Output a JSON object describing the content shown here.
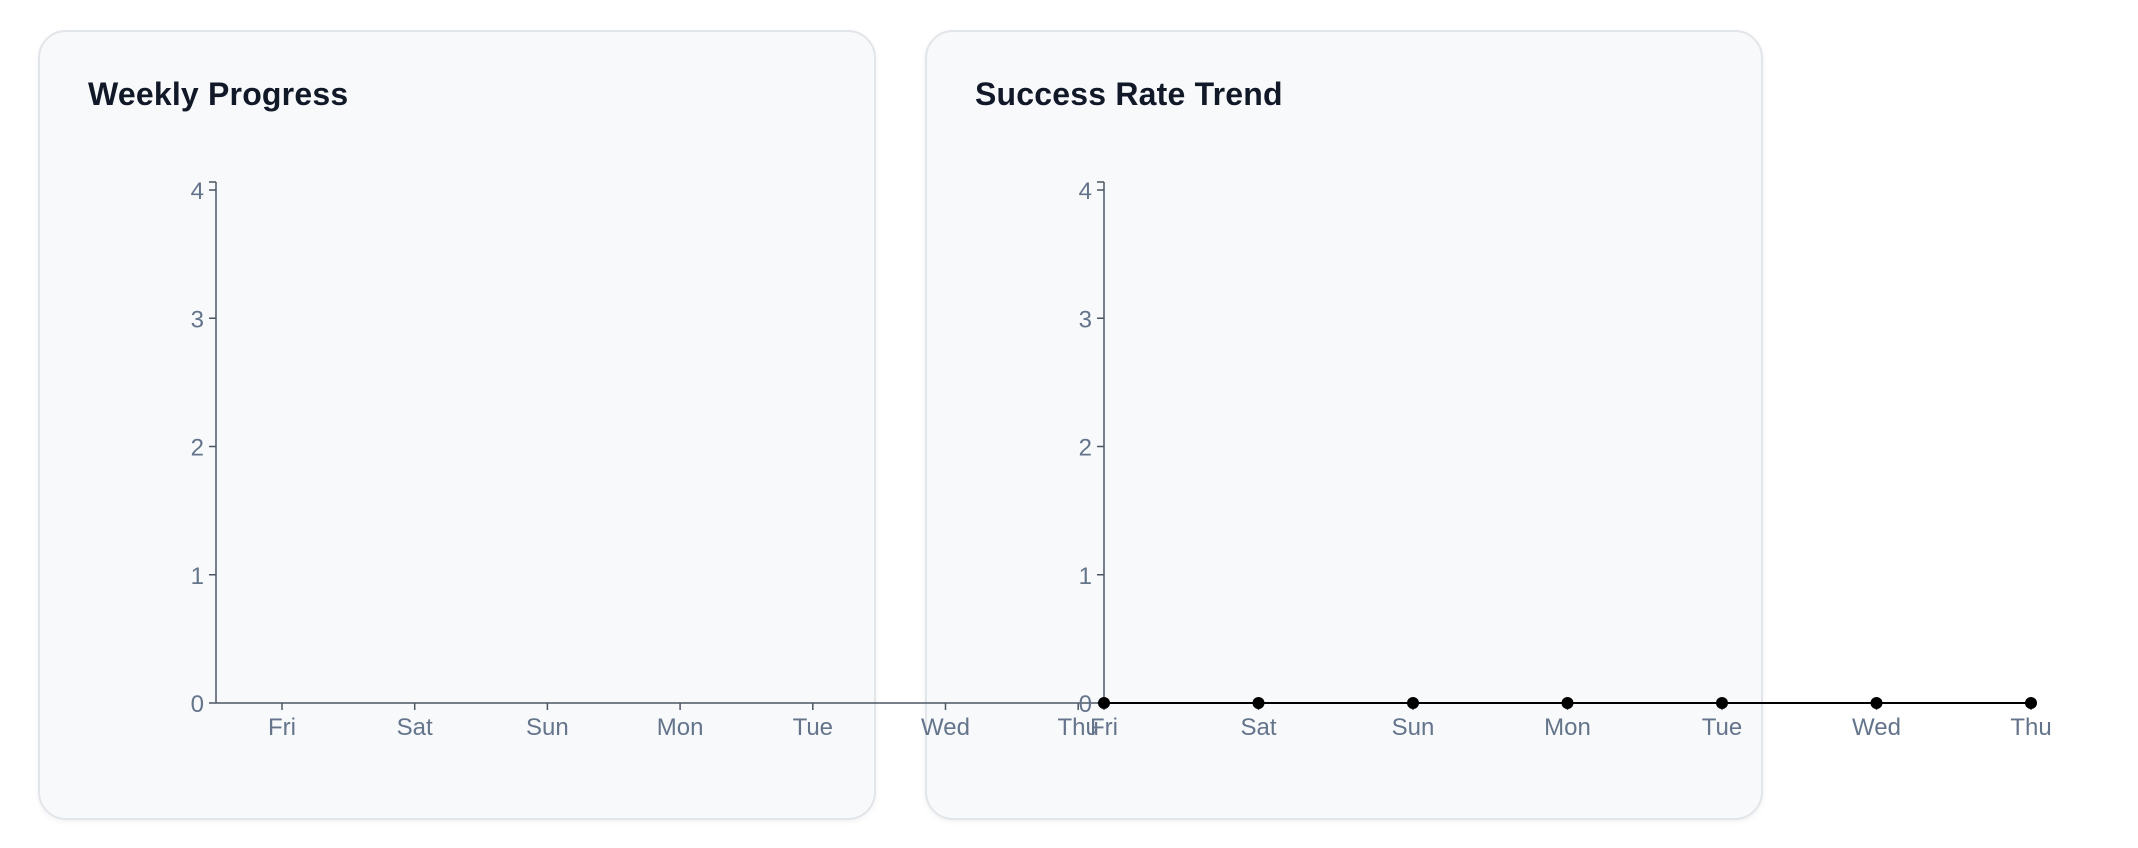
{
  "cards": {
    "weekly": {
      "title": "Weekly Progress"
    },
    "success": {
      "title": "Success Rate Trend"
    }
  },
  "chart_data": [
    {
      "type": "bar",
      "title": "Weekly Progress",
      "categories": [
        "Fri",
        "Sat",
        "Sun",
        "Mon",
        "Tue",
        "Wed",
        "Thu"
      ],
      "values": [
        0,
        0,
        0,
        0,
        0,
        0,
        0
      ],
      "ylim": [
        0,
        4
      ],
      "yticks": [
        0,
        1,
        2,
        3,
        4
      ],
      "xlabel": "",
      "ylabel": "",
      "grid": false,
      "colors": {
        "axis": "#4b5563",
        "tick_label": "#64748b"
      }
    },
    {
      "type": "line",
      "title": "Success Rate Trend",
      "categories": [
        "Fri",
        "Sat",
        "Sun",
        "Mon",
        "Tue",
        "Wed",
        "Thu"
      ],
      "values": [
        0,
        0,
        0,
        0,
        0,
        0,
        0
      ],
      "ylim": [
        0,
        4
      ],
      "yticks": [
        0,
        1,
        2,
        3,
        4
      ],
      "xlabel": "",
      "ylabel": "",
      "grid": false,
      "colors": {
        "axis": "#4b5563",
        "tick_label": "#64748b",
        "point": "#000000"
      }
    }
  ]
}
